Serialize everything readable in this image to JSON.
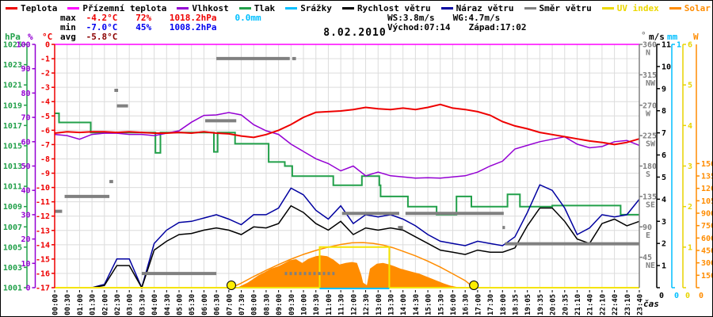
{
  "window": {
    "title": "8.02.2010"
  },
  "legend": {
    "items": [
      {
        "label": "Teplota",
        "color": "#ee0000",
        "series": "temperature",
        "label_colored": false
      },
      {
        "label": "Přízemní teplota",
        "color": "#ff00ff",
        "series": "ground-temperature",
        "label_colored": false
      },
      {
        "label": "Vlhkost",
        "color": "#9400d3",
        "series": "humidity",
        "label_colored": false
      },
      {
        "label": "Tlak",
        "color": "#22a04a",
        "series": "pressure",
        "label_colored": false
      },
      {
        "label": "Srážky",
        "color": "#00bfff",
        "series": "precipitation",
        "label_colored": false
      },
      {
        "label": "Rychlost větru",
        "color": "#000000",
        "series": "wind-speed",
        "label_colored": false
      },
      {
        "label": "Náraz větru",
        "color": "#0000a0",
        "series": "wind-gust",
        "label_colored": false
      },
      {
        "label": "Směr větru",
        "color": "#808080",
        "series": "wind-direction",
        "label_colored": false
      },
      {
        "label": "UV index",
        "color": "#ecd800",
        "series": "uv-index",
        "label_colored": true
      },
      {
        "label": "Solar",
        "color": "#ff8c00",
        "series": "solar",
        "label_colored": true
      }
    ]
  },
  "stats": {
    "max": {
      "label": "max",
      "temp": "-4.2°C",
      "hum": "72%",
      "pres": "1018.2hPa",
      "rain": "0.0mm"
    },
    "min": {
      "label": "min",
      "temp": "-7.0°C",
      "hum": "45%",
      "pres": "1008.2hPa"
    },
    "avg": {
      "label": "avg",
      "temp": "-5.8°C"
    },
    "wind": {
      "ws": "WS:3.8m/s",
      "wg": "WG:4.7m/s"
    },
    "sun": {
      "rise": "Východ:07:14",
      "set": "Západ:17:02"
    }
  },
  "axes_headers": {
    "hpa": "hPa",
    "pct": "%",
    "degc": "°C",
    "deg": "°",
    "ms": "m/s",
    "mm": "mm",
    "watt": "W",
    "time": "čas"
  },
  "colors": {
    "temperature": "#ee0000",
    "ground": "#ff00ff",
    "humidity": "#9400d3",
    "pressure": "#22a04a",
    "precipitation": "#00bfff",
    "wind_speed": "#000000",
    "wind_gust": "#0000a0",
    "wind_direction": "#808080",
    "uv": "#f5e400",
    "solar": "#ff8c00",
    "grid": "#dcdcdc",
    "stat_min": "#0000ee",
    "stat_avg": "#8b0000",
    "sun_marker": "#ffee00"
  },
  "chart_data": {
    "type": "line",
    "title": "8.02.2010",
    "x_labels": [
      "00:00",
      "00:30",
      "01:00",
      "01:30",
      "02:00",
      "02:30",
      "03:00",
      "03:30",
      "04:00",
      "04:30",
      "05:00",
      "05:30",
      "06:00",
      "06:30",
      "07:00",
      "07:30",
      "08:00",
      "08:30",
      "09:00",
      "09:30",
      "10:00",
      "10:30",
      "11:00",
      "11:30",
      "12:00",
      "12:30",
      "13:00",
      "13:30",
      "14:00",
      "14:30",
      "15:00",
      "15:30",
      "16:00",
      "16:30",
      "17:00",
      "17:30",
      "18:00",
      "18:35",
      "19:05",
      "19:35",
      "20:05",
      "20:35",
      "21:10",
      "21:40",
      "22:10",
      "22:40",
      "23:10",
      "23:40"
    ],
    "xlabel": "čas",
    "sunrise": "07:14",
    "sunset": "17:02",
    "sun_markers_slots": [
      14.2,
      33.7
    ],
    "axes": {
      "temp_c": {
        "min": -17,
        "max": 0,
        "tick_step": 1,
        "label": "°C"
      },
      "humidity_pct": {
        "min": 0,
        "max": 100,
        "tick_step": 10,
        "label": "%"
      },
      "pressure_hpa": {
        "min": 1001,
        "max": 1025,
        "tick_step": 2,
        "label": "hPa"
      },
      "wind_ms": {
        "min": 0,
        "max": 11,
        "tick_step": 1,
        "label": "m/s"
      },
      "rain_mm": {
        "min": 0,
        "max": 1,
        "tick_step": 1,
        "label": "mm"
      },
      "uv": {
        "min": 0,
        "max": 6,
        "tick_step": 1,
        "label": ""
      },
      "solar_w": {
        "min": 0,
        "max": 2940,
        "tick_step": 150,
        "tick_max": 1500,
        "label": "W"
      },
      "dir_deg": {
        "min": 0,
        "max": 360,
        "ticks": [
          [
            360,
            "N"
          ],
          [
            315,
            "NW"
          ],
          [
            270,
            "W"
          ],
          [
            225,
            "SW"
          ],
          [
            180,
            "S"
          ],
          [
            135,
            "SE"
          ],
          [
            90,
            "E"
          ],
          [
            45,
            "NE"
          ]
        ],
        "label": "°"
      }
    },
    "series": {
      "temperature": {
        "name": "Teplota",
        "axis": "temp_c",
        "values": [
          -6.2,
          -6.1,
          -6.15,
          -6.1,
          -6.1,
          -6.15,
          -6.1,
          -6.15,
          -6.2,
          -6.2,
          -6.15,
          -6.2,
          -6.1,
          -6.2,
          -6.25,
          -6.4,
          -6.5,
          -6.3,
          -6.0,
          -5.6,
          -5.1,
          -4.75,
          -4.7,
          -4.65,
          -4.55,
          -4.4,
          -4.5,
          -4.55,
          -4.45,
          -4.55,
          -4.4,
          -4.2,
          -4.45,
          -4.55,
          -4.7,
          -4.95,
          -5.4,
          -5.7,
          -5.9,
          -6.15,
          -6.3,
          -6.45,
          -6.6,
          -6.75,
          -6.85,
          -7.0,
          -6.85,
          -6.6
        ]
      },
      "ground_temperature": {
        "name": "Přízemní teplota",
        "axis": "temp_c",
        "values": [
          0,
          0,
          0,
          0,
          0,
          0,
          0,
          0,
          0,
          0,
          0,
          0,
          0,
          0,
          0,
          0,
          0,
          0,
          0,
          0,
          0,
          0,
          0,
          0,
          0,
          0,
          0,
          0,
          0,
          0,
          0,
          0,
          0,
          0,
          0,
          0,
          0,
          0,
          0,
          0,
          0,
          0,
          0,
          0,
          0,
          0,
          0,
          0
        ]
      },
      "humidity": {
        "name": "Vlhkost",
        "axis": "humidity_pct",
        "values": [
          63,
          62.5,
          61,
          63,
          63.5,
          63.5,
          63,
          63,
          62.5,
          63.5,
          64.5,
          68,
          70.8,
          71,
          72,
          71,
          67,
          64.5,
          63,
          59,
          56,
          53,
          51,
          48,
          50,
          46,
          47.5,
          46,
          45.5,
          45,
          45.2,
          45,
          45.5,
          46,
          47.5,
          50,
          52,
          57,
          58.5,
          60,
          61,
          62,
          59,
          57.5,
          58,
          60,
          60.5,
          58.5
        ]
      },
      "pressure": {
        "name": "Tlak",
        "axis": "pressure_hpa",
        "type": "step",
        "points": [
          [
            0,
            1018.2
          ],
          [
            0.35,
            1017.3
          ],
          [
            2.9,
            1016.3
          ],
          [
            8.0,
            1016.3
          ],
          [
            8.1,
            1014.3
          ],
          [
            8.5,
            1016.3
          ],
          [
            12.6,
            1016.3
          ],
          [
            12.8,
            1014.4
          ],
          [
            13.1,
            1016.3
          ],
          [
            14.5,
            1015.2
          ],
          [
            17.0,
            1015.2
          ],
          [
            17.2,
            1013.4
          ],
          [
            18.5,
            1013.0
          ],
          [
            19.1,
            1012.0
          ],
          [
            22.4,
            1011.1
          ],
          [
            24.6,
            1011.1
          ],
          [
            24.7,
            1012.0
          ],
          [
            25.9,
            1012.0
          ],
          [
            26.1,
            1011.1
          ],
          [
            26.2,
            1010.0
          ],
          [
            28.2,
            1010.0
          ],
          [
            28.4,
            1009.0
          ],
          [
            30.5,
            1009.0
          ],
          [
            30.7,
            1008.2
          ],
          [
            32.1,
            1008.2
          ],
          [
            32.3,
            1010.0
          ],
          [
            33.4,
            1010.0
          ],
          [
            33.5,
            1009.0
          ],
          [
            36.2,
            1009.0
          ],
          [
            36.4,
            1010.2
          ],
          [
            37.2,
            1010.2
          ],
          [
            37.4,
            1009.0
          ],
          [
            39.8,
            1009.0
          ],
          [
            40.0,
            1009.1
          ],
          [
            45.3,
            1009.1
          ],
          [
            45.5,
            1008.2
          ],
          [
            47,
            1008.2
          ]
        ]
      },
      "wind_speed": {
        "name": "Rychlost větru",
        "axis": "wind_ms",
        "values": [
          0,
          0,
          0,
          0,
          0.1,
          1.0,
          1.0,
          0,
          1.7,
          2.1,
          2.4,
          2.45,
          2.6,
          2.7,
          2.6,
          2.4,
          2.75,
          2.7,
          2.9,
          3.7,
          3.4,
          2.9,
          2.6,
          3.0,
          2.4,
          2.7,
          2.6,
          2.7,
          2.6,
          2.3,
          2.0,
          1.7,
          1.6,
          1.5,
          1.7,
          1.6,
          1.6,
          1.8,
          2.8,
          3.6,
          3.6,
          3.0,
          2.2,
          2.0,
          2.9,
          3.1,
          2.8,
          3.0
        ]
      },
      "wind_gust": {
        "name": "Náraz větru",
        "axis": "wind_ms",
        "values": [
          0,
          0,
          0,
          0,
          0.15,
          1.3,
          1.3,
          0,
          2.0,
          2.6,
          2.95,
          3.0,
          3.15,
          3.3,
          3.1,
          2.85,
          3.3,
          3.3,
          3.6,
          4.5,
          4.2,
          3.5,
          3.1,
          3.7,
          2.9,
          3.3,
          3.2,
          3.3,
          3.1,
          2.8,
          2.4,
          2.1,
          2.0,
          1.9,
          2.1,
          2.0,
          1.9,
          2.3,
          3.4,
          4.65,
          4.4,
          3.6,
          2.4,
          2.7,
          3.3,
          3.2,
          3.3,
          4.0
        ]
      },
      "wind_direction": {
        "name": "Směr větru",
        "axis": "dir_deg",
        "type": "segments",
        "segments": [
          [
            0,
            0.6,
            113,
            0
          ],
          [
            0.8,
            4.4,
            135,
            0
          ],
          [
            4.4,
            4.7,
            157,
            0
          ],
          [
            4.8,
            5.1,
            292,
            0
          ],
          [
            5.0,
            5.9,
            269,
            0
          ],
          [
            7.0,
            13.0,
            21,
            0
          ],
          [
            12.1,
            14.6,
            247,
            0
          ],
          [
            13.0,
            18.9,
            339,
            0
          ],
          [
            19.1,
            19.4,
            339,
            0
          ],
          [
            18.5,
            22.5,
            21,
            1
          ],
          [
            23.1,
            27.7,
            110,
            0
          ],
          [
            27.6,
            28.0,
            89,
            0
          ],
          [
            28.2,
            36.1,
            110,
            0
          ],
          [
            36.0,
            36.2,
            89,
            0
          ],
          [
            36.2,
            47,
            65,
            0
          ]
        ]
      },
      "uv_index": {
        "name": "UV index",
        "axis": "uv",
        "type": "path",
        "points": [
          [
            0,
            0
          ],
          [
            21.3,
            0
          ],
          [
            21.3,
            1
          ],
          [
            26.9,
            1
          ],
          [
            26.9,
            0
          ],
          [
            47,
            0
          ]
        ]
      },
      "precipitation": {
        "name": "Srážky",
        "axis": "rain_mm",
        "type": "path",
        "points": [
          [
            21.3,
            0
          ],
          [
            26.9,
            0
          ]
        ]
      },
      "solar": {
        "name": "Solar",
        "axis": "solar_w",
        "type": "area",
        "points": [
          [
            14.6,
            0
          ],
          [
            14.8,
            10
          ],
          [
            15.5,
            60
          ],
          [
            15.9,
            100
          ],
          [
            16.4,
            150
          ],
          [
            16.9,
            190
          ],
          [
            17.4,
            230
          ],
          [
            18.0,
            260
          ],
          [
            18.4,
            290
          ],
          [
            18.9,
            330
          ],
          [
            19.4,
            345
          ],
          [
            19.9,
            300
          ],
          [
            20.4,
            350
          ],
          [
            21.0,
            380
          ],
          [
            21.4,
            390
          ],
          [
            21.9,
            380
          ],
          [
            22.4,
            340
          ],
          [
            22.9,
            280
          ],
          [
            23.4,
            300
          ],
          [
            23.9,
            310
          ],
          [
            24.3,
            300
          ],
          [
            24.65,
            150
          ],
          [
            24.8,
            60
          ],
          [
            25.1,
            30
          ],
          [
            25.35,
            230
          ],
          [
            25.9,
            290
          ],
          [
            26.4,
            300
          ],
          [
            26.9,
            280
          ],
          [
            27.3,
            260
          ],
          [
            27.8,
            230
          ],
          [
            28.3,
            210
          ],
          [
            28.8,
            190
          ],
          [
            29.3,
            170
          ],
          [
            29.8,
            140
          ],
          [
            30.3,
            110
          ],
          [
            30.8,
            80
          ],
          [
            31.3,
            50
          ],
          [
            31.8,
            25
          ],
          [
            32.3,
            10
          ],
          [
            32.7,
            3
          ],
          [
            33.2,
            0
          ]
        ]
      },
      "solar_max": {
        "name": "Solar max",
        "axis": "solar_w",
        "type": "path",
        "points": [
          [
            14.2,
            0
          ],
          [
            15,
            55
          ],
          [
            16,
            135
          ],
          [
            17,
            210
          ],
          [
            18,
            280
          ],
          [
            19,
            345
          ],
          [
            20,
            402
          ],
          [
            21,
            450
          ],
          [
            22,
            490
          ],
          [
            23,
            522
          ],
          [
            23.9,
            542
          ],
          [
            24.8,
            545
          ],
          [
            25.6,
            535
          ],
          [
            26.4,
            515
          ],
          [
            27.2,
            483
          ],
          [
            28,
            440
          ],
          [
            29,
            385
          ],
          [
            30,
            320
          ],
          [
            31,
            248
          ],
          [
            32,
            168
          ],
          [
            33,
            85
          ],
          [
            33.7,
            0
          ]
        ]
      }
    },
    "draw_order": [
      "solar",
      "solar_max",
      "pressure",
      "humidity",
      "ground_temperature",
      "temperature",
      "wind_gust",
      "wind_speed",
      "uv_index",
      "precipitation",
      "wind_direction"
    ],
    "series_style": {
      "temperature": {
        "color": "#ee0000",
        "width": 2
      },
      "ground_temperature": {
        "color": "#ff00ff",
        "width": 1.5
      },
      "humidity": {
        "color": "#9400d3",
        "width": 1.5
      },
      "pressure": {
        "color": "#22a04a",
        "width": 2
      },
      "wind_speed": {
        "color": "#000000",
        "width": 1.5
      },
      "wind_gust": {
        "color": "#0000a0",
        "width": 1.5
      },
      "wind_direction": {
        "color": "#808080",
        "width": 4
      },
      "uv_index": {
        "color": "#f5e400",
        "width": 2
      },
      "precipitation": {
        "color": "#00bfff",
        "width": 2
      },
      "solar": {
        "color": "#ff8c00",
        "width": 1
      },
      "solar_max": {
        "color": "#ff8c00",
        "width": 1.5
      }
    }
  }
}
